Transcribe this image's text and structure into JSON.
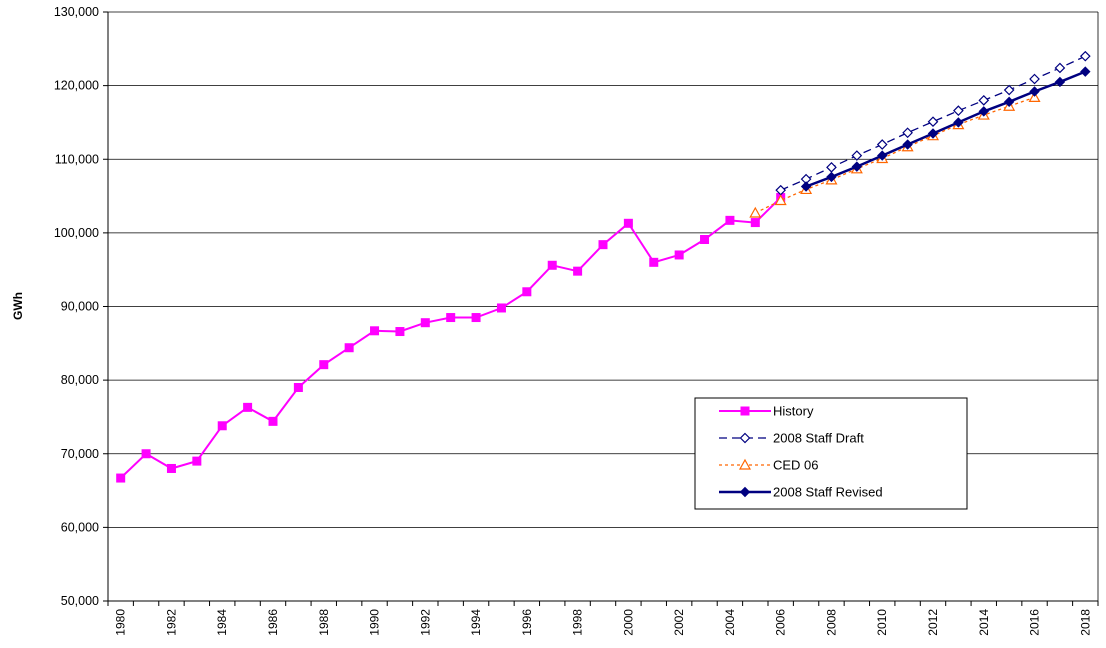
{
  "chart_data": {
    "type": "line",
    "title": "",
    "xlabel": "",
    "ylabel": "GWh",
    "xlim": [
      1980,
      2018
    ],
    "ylim": [
      50000,
      130000
    ],
    "y_ticks": [
      50000,
      60000,
      70000,
      80000,
      90000,
      100000,
      110000,
      120000,
      130000
    ],
    "y_tick_labels": [
      "50,000",
      "60,000",
      "70,000",
      "80,000",
      "90,000",
      "100,000",
      "110,000",
      "120,000",
      "130,000"
    ],
    "x_tick_labels": [
      "1980",
      "1982",
      "1984",
      "1986",
      "1988",
      "1990",
      "1992",
      "1994",
      "1996",
      "1998",
      "2000",
      "2002",
      "2004",
      "2006",
      "2008",
      "2010",
      "2012",
      "2014",
      "2016",
      "2018"
    ],
    "grid": "horizontal",
    "legend_position": "lower-right",
    "series": [
      {
        "name": "History",
        "color": "#ff00ff",
        "line_style": "solid",
        "marker": "filled-square",
        "x": [
          1980,
          1981,
          1982,
          1983,
          1984,
          1985,
          1986,
          1987,
          1988,
          1989,
          1990,
          1991,
          1992,
          1993,
          1994,
          1995,
          1996,
          1997,
          1998,
          1999,
          2000,
          2001,
          2002,
          2003,
          2004,
          2005,
          2006
        ],
        "y": [
          66700,
          70000,
          68000,
          69000,
          73800,
          76300,
          74400,
          79000,
          82100,
          84400,
          86700,
          86600,
          87800,
          88500,
          88500,
          89800,
          92000,
          95600,
          94800,
          98400,
          101300,
          96000,
          97000,
          99100,
          101700,
          101400,
          104800
        ]
      },
      {
        "name": "2008 Staff Draft",
        "color": "#000080",
        "line_style": "dashed",
        "marker": "open-diamond",
        "x": [
          2006,
          2007,
          2008,
          2009,
          2010,
          2011,
          2012,
          2013,
          2014,
          2015,
          2016,
          2017,
          2018
        ],
        "y": [
          105800,
          107300,
          108900,
          110500,
          112000,
          113600,
          115100,
          116600,
          118000,
          119400,
          120900,
          122400,
          124000
        ]
      },
      {
        "name": "CED 06",
        "color": "#ff6600",
        "line_style": "dotted",
        "marker": "open-triangle",
        "x": [
          2005,
          2006,
          2007,
          2008,
          2009,
          2010,
          2011,
          2012,
          2013,
          2014,
          2015,
          2016
        ],
        "y": [
          102700,
          104400,
          105900,
          107200,
          108700,
          110100,
          111700,
          113200,
          114700,
          116000,
          117200,
          118400
        ]
      },
      {
        "name": "2008 Staff Revised",
        "color": "#000080",
        "line_style": "solid",
        "marker": "filled-diamond",
        "x": [
          2007,
          2008,
          2009,
          2010,
          2011,
          2012,
          2013,
          2014,
          2015,
          2016,
          2017,
          2018
        ],
        "y": [
          106300,
          107600,
          109000,
          110500,
          112000,
          113500,
          115000,
          116500,
          117800,
          119200,
          120500,
          121900
        ]
      }
    ]
  }
}
